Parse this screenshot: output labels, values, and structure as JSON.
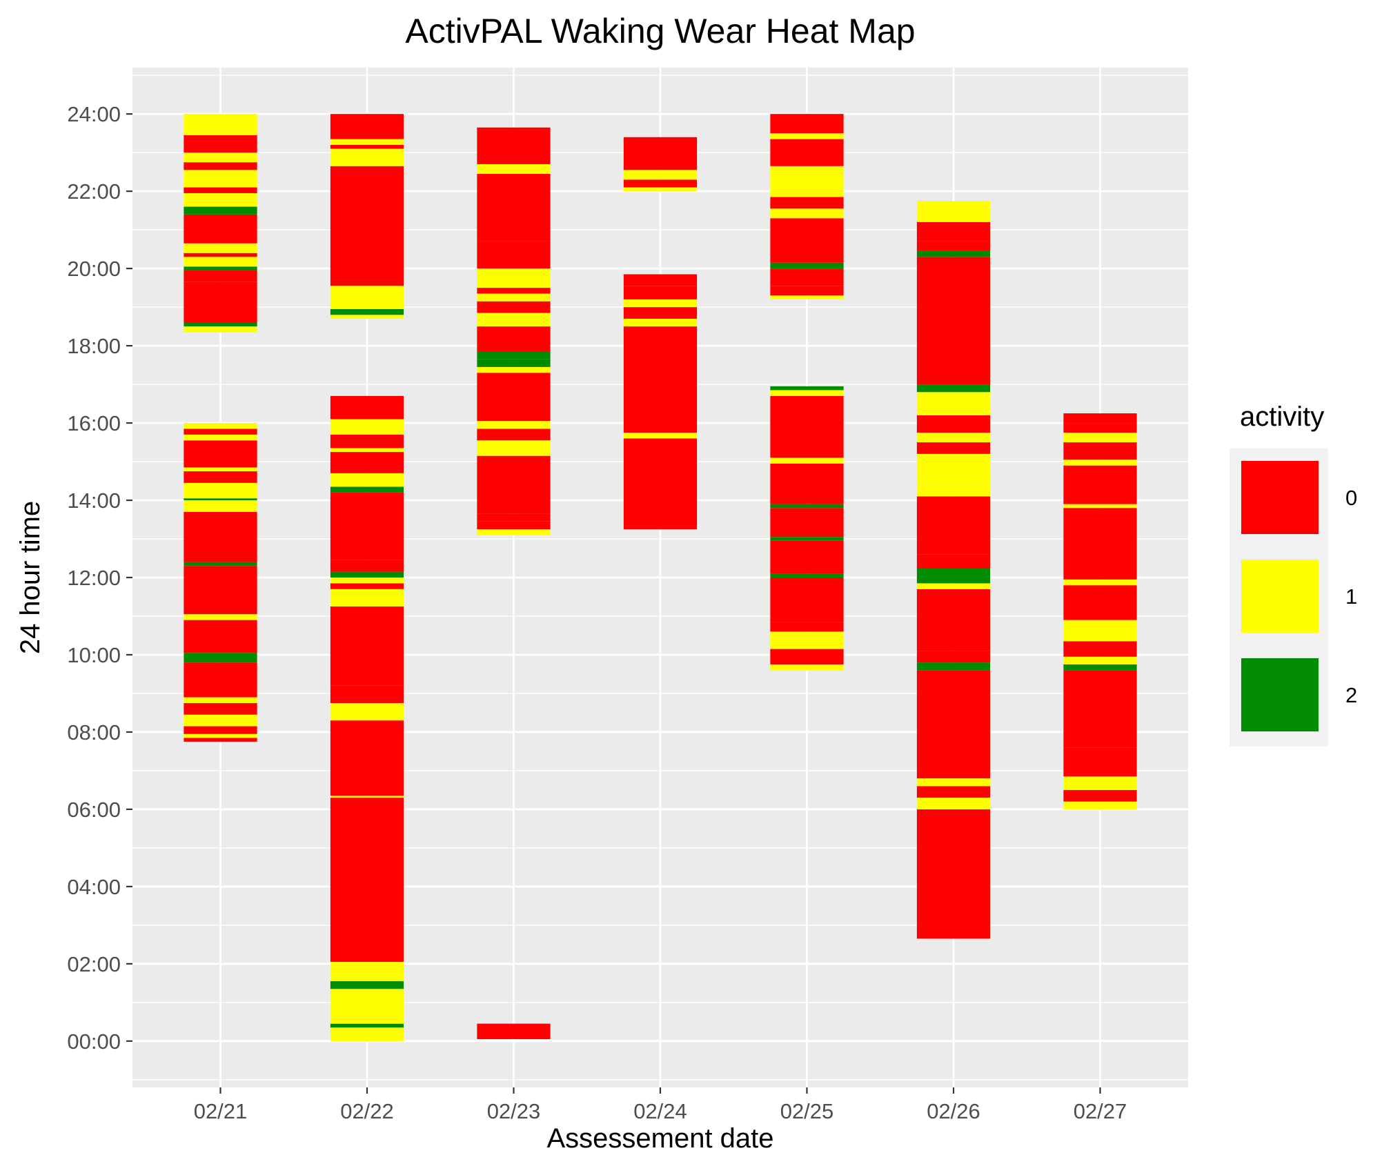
{
  "chart_data": {
    "type": "heatmap",
    "title": "ActivPAL Waking Wear Heat Map",
    "xlabel": "Assessement date",
    "ylabel": "24 hour time",
    "categories": [
      "02/21",
      "02/22",
      "02/23",
      "02/24",
      "02/25",
      "02/26",
      "02/27"
    ],
    "y_ticks": [
      0,
      2,
      4,
      6,
      8,
      10,
      12,
      14,
      16,
      18,
      20,
      22,
      24
    ],
    "y_tick_labels": [
      "00:00",
      "02:00",
      "04:00",
      "06:00",
      "08:00",
      "10:00",
      "12:00",
      "14:00",
      "16:00",
      "18:00",
      "20:00",
      "22:00",
      "24:00"
    ],
    "ylim": [
      -1.2,
      25.2
    ],
    "grid": true,
    "legend": {
      "title": "activity",
      "position": "right",
      "items": [
        {
          "label": "0",
          "color": "#ff0000"
        },
        {
          "label": "1",
          "color": "#ffff00"
        },
        {
          "label": "2",
          "color": "#008b00"
        }
      ]
    },
    "activity_colors": {
      "0": "#ff0000",
      "1": "#ffff00",
      "2": "#008b00"
    },
    "days": [
      {
        "date": "02/21",
        "segments": [
          [
            7.75,
            7.85,
            0
          ],
          [
            7.85,
            7.95,
            1
          ],
          [
            7.95,
            8.15,
            0
          ],
          [
            8.15,
            8.45,
            1
          ],
          [
            8.45,
            8.75,
            0
          ],
          [
            8.75,
            8.9,
            1
          ],
          [
            8.9,
            9.8,
            0
          ],
          [
            9.8,
            10.05,
            2
          ],
          [
            10.05,
            10.9,
            0
          ],
          [
            10.9,
            11.05,
            1
          ],
          [
            11.05,
            12.3,
            0
          ],
          [
            12.3,
            12.4,
            2
          ],
          [
            12.4,
            13.7,
            0
          ],
          [
            13.7,
            14.0,
            1
          ],
          [
            14.0,
            14.05,
            2
          ],
          [
            14.05,
            14.45,
            1
          ],
          [
            14.45,
            14.75,
            0
          ],
          [
            14.75,
            14.85,
            1
          ],
          [
            14.85,
            15.55,
            0
          ],
          [
            15.55,
            15.7,
            1
          ],
          [
            15.7,
            15.85,
            0
          ],
          [
            15.85,
            16.0,
            1
          ],
          [
            18.35,
            18.5,
            1
          ],
          [
            18.5,
            18.6,
            2
          ],
          [
            18.6,
            19.65,
            0
          ],
          [
            19.65,
            19.95,
            0
          ],
          [
            19.95,
            20.05,
            2
          ],
          [
            20.05,
            20.3,
            1
          ],
          [
            20.3,
            20.4,
            0
          ],
          [
            20.4,
            20.65,
            1
          ],
          [
            20.65,
            20.85,
            0
          ],
          [
            20.85,
            21.4,
            0
          ],
          [
            21.4,
            21.6,
            2
          ],
          [
            21.6,
            21.95,
            1
          ],
          [
            21.95,
            22.1,
            0
          ],
          [
            22.1,
            22.55,
            1
          ],
          [
            22.55,
            22.75,
            0
          ],
          [
            22.75,
            23.0,
            1
          ],
          [
            23.0,
            23.2,
            0
          ],
          [
            23.2,
            23.45,
            0
          ],
          [
            23.45,
            23.55,
            1
          ],
          [
            23.55,
            24.0,
            1
          ]
        ]
      },
      {
        "date": "02/22",
        "segments": [
          [
            0.0,
            0.35,
            1
          ],
          [
            0.35,
            0.45,
            2
          ],
          [
            0.45,
            1.35,
            1
          ],
          [
            1.35,
            1.55,
            2
          ],
          [
            1.55,
            1.7,
            1
          ],
          [
            1.7,
            2.05,
            1
          ],
          [
            2.05,
            6.3,
            0
          ],
          [
            6.3,
            6.35,
            1
          ],
          [
            6.35,
            8.3,
            0
          ],
          [
            8.3,
            8.75,
            1
          ],
          [
            8.75,
            9.2,
            0
          ],
          [
            9.2,
            11.25,
            0
          ],
          [
            11.25,
            11.7,
            1
          ],
          [
            11.7,
            11.85,
            0
          ],
          [
            11.85,
            12.0,
            1
          ],
          [
            12.0,
            12.15,
            2
          ],
          [
            12.15,
            12.45,
            0
          ],
          [
            12.45,
            14.2,
            0
          ],
          [
            14.2,
            14.35,
            2
          ],
          [
            14.35,
            14.7,
            1
          ],
          [
            14.7,
            15.25,
            0
          ],
          [
            15.25,
            15.35,
            1
          ],
          [
            15.35,
            15.7,
            0
          ],
          [
            15.7,
            16.1,
            1
          ],
          [
            16.1,
            16.7,
            0
          ],
          [
            18.7,
            18.8,
            1
          ],
          [
            18.8,
            18.95,
            2
          ],
          [
            18.95,
            19.55,
            1
          ],
          [
            19.55,
            22.65,
            0
          ],
          [
            22.65,
            23.1,
            1
          ],
          [
            23.1,
            23.2,
            0
          ],
          [
            23.2,
            23.35,
            1
          ],
          [
            23.35,
            24.0,
            0
          ]
        ]
      },
      {
        "date": "02/23",
        "segments": [
          [
            0.05,
            0.45,
            0
          ],
          [
            13.1,
            13.25,
            1
          ],
          [
            13.25,
            13.45,
            0
          ],
          [
            13.45,
            13.65,
            0
          ],
          [
            13.65,
            15.15,
            0
          ],
          [
            15.15,
            15.55,
            1
          ],
          [
            15.55,
            15.85,
            0
          ],
          [
            15.85,
            16.05,
            1
          ],
          [
            16.05,
            17.3,
            0
          ],
          [
            17.3,
            17.45,
            1
          ],
          [
            17.45,
            17.65,
            2
          ],
          [
            17.65,
            17.85,
            2
          ],
          [
            17.85,
            18.5,
            0
          ],
          [
            18.5,
            18.85,
            1
          ],
          [
            18.85,
            19.15,
            0
          ],
          [
            19.15,
            19.35,
            1
          ],
          [
            19.35,
            19.5,
            0
          ],
          [
            19.5,
            20.0,
            1
          ],
          [
            20.0,
            20.7,
            0
          ],
          [
            20.7,
            22.45,
            0
          ],
          [
            22.45,
            22.7,
            1
          ],
          [
            22.7,
            23.65,
            0
          ]
        ]
      },
      {
        "date": "02/24",
        "segments": [
          [
            13.25,
            15.6,
            0
          ],
          [
            15.6,
            15.75,
            1
          ],
          [
            15.75,
            18.5,
            0
          ],
          [
            18.5,
            18.7,
            1
          ],
          [
            18.7,
            19.0,
            0
          ],
          [
            19.0,
            19.2,
            1
          ],
          [
            19.2,
            19.55,
            0
          ],
          [
            19.55,
            19.85,
            0
          ],
          [
            22.0,
            22.1,
            1
          ],
          [
            22.1,
            22.3,
            0
          ],
          [
            22.3,
            22.55,
            1
          ],
          [
            22.55,
            23.4,
            0
          ]
        ]
      },
      {
        "date": "02/25",
        "segments": [
          [
            9.6,
            9.75,
            1
          ],
          [
            9.75,
            10.15,
            0
          ],
          [
            10.15,
            10.35,
            1
          ],
          [
            10.35,
            10.6,
            1
          ],
          [
            10.6,
            10.85,
            0
          ],
          [
            10.85,
            12.0,
            0
          ],
          [
            12.0,
            12.1,
            2
          ],
          [
            12.1,
            12.95,
            0
          ],
          [
            12.95,
            13.05,
            2
          ],
          [
            13.05,
            13.8,
            0
          ],
          [
            13.8,
            13.9,
            2
          ],
          [
            13.9,
            14.95,
            0
          ],
          [
            14.95,
            15.1,
            1
          ],
          [
            15.1,
            16.7,
            0
          ],
          [
            16.7,
            16.85,
            1
          ],
          [
            16.85,
            16.95,
            2
          ],
          [
            19.2,
            19.3,
            1
          ],
          [
            19.3,
            19.55,
            0
          ],
          [
            19.55,
            20.0,
            0
          ],
          [
            20.0,
            20.15,
            2
          ],
          [
            20.15,
            21.3,
            0
          ],
          [
            21.3,
            21.55,
            1
          ],
          [
            21.55,
            21.85,
            0
          ],
          [
            21.85,
            22.65,
            1
          ],
          [
            22.65,
            23.35,
            0
          ],
          [
            23.35,
            23.5,
            1
          ],
          [
            23.5,
            24.0,
            0
          ]
        ]
      },
      {
        "date": "02/26",
        "segments": [
          [
            2.65,
            6.0,
            0
          ],
          [
            6.0,
            6.3,
            1
          ],
          [
            6.3,
            6.6,
            0
          ],
          [
            6.6,
            6.8,
            1
          ],
          [
            6.8,
            9.6,
            0
          ],
          [
            9.6,
            9.8,
            2
          ],
          [
            9.8,
            10.1,
            0
          ],
          [
            10.1,
            11.7,
            0
          ],
          [
            11.7,
            11.85,
            1
          ],
          [
            11.85,
            12.25,
            2
          ],
          [
            12.25,
            12.6,
            0
          ],
          [
            12.6,
            14.1,
            0
          ],
          [
            14.1,
            14.4,
            1
          ],
          [
            14.4,
            15.2,
            1
          ],
          [
            15.2,
            15.5,
            0
          ],
          [
            15.5,
            15.75,
            1
          ],
          [
            15.75,
            16.2,
            0
          ],
          [
            16.2,
            16.8,
            1
          ],
          [
            16.8,
            17.0,
            2
          ],
          [
            17.0,
            20.3,
            0
          ],
          [
            20.3,
            20.45,
            2
          ],
          [
            20.45,
            20.7,
            0
          ],
          [
            20.7,
            21.2,
            0
          ],
          [
            21.2,
            21.5,
            1
          ],
          [
            21.5,
            21.75,
            1
          ]
        ]
      },
      {
        "date": "02/27",
        "segments": [
          [
            6.0,
            6.1,
            1
          ],
          [
            6.1,
            6.2,
            1
          ],
          [
            6.2,
            6.5,
            0
          ],
          [
            6.5,
            6.85,
            1
          ],
          [
            6.85,
            7.6,
            0
          ],
          [
            7.6,
            9.6,
            0
          ],
          [
            9.6,
            9.75,
            2
          ],
          [
            9.75,
            9.95,
            1
          ],
          [
            9.95,
            10.35,
            0
          ],
          [
            10.35,
            10.9,
            1
          ],
          [
            10.9,
            11.8,
            0
          ],
          [
            11.8,
            11.95,
            1
          ],
          [
            11.95,
            13.8,
            0
          ],
          [
            13.8,
            13.9,
            1
          ],
          [
            13.9,
            14.9,
            0
          ],
          [
            14.9,
            15.05,
            1
          ],
          [
            15.05,
            15.5,
            0
          ],
          [
            15.5,
            15.75,
            1
          ],
          [
            15.75,
            16.0,
            0
          ],
          [
            16.0,
            16.25,
            0
          ]
        ]
      }
    ]
  }
}
